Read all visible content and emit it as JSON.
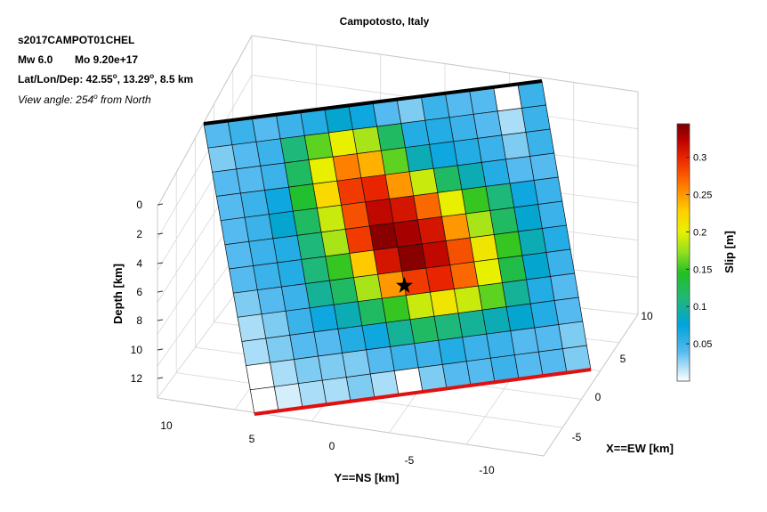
{
  "chart_data": {
    "type": "heatmap",
    "title": "Campotosto, Italy",
    "info": {
      "event_id": "s2017CAMPOT01CHEL",
      "magnitude": "Mw 6.0",
      "moment": "Mo 9.20e+17",
      "location_prefix": "Lat/Lon/Dep: 42.55",
      "lat_suffix": ", 13.29",
      "depth_suffix": ", 8.5 km",
      "degree_symbol": "o",
      "view_prefix": "View angle: 254",
      "view_suffix": " from North"
    },
    "xlabel": "X==EW [km]",
    "ylabel": "Y==NS [km]",
    "zlabel": "Depth [km]",
    "colorbar_label": "Slip [m]",
    "x_ticks": [
      "10",
      "5",
      "0",
      "-5"
    ],
    "y_ticks": [
      "10",
      "5",
      "0",
      "-5",
      "-10"
    ],
    "z_ticks": [
      "0",
      "2",
      "4",
      "6",
      "8",
      "10",
      "12"
    ],
    "colorbar_ticks": [
      "0.05",
      "0.1",
      "0.15",
      "0.2",
      "0.25",
      "0.3"
    ],
    "colorbar_range": [
      0,
      0.345
    ],
    "grid": true,
    "rows": 12,
    "cols": 14,
    "slip": [
      [
        0.04,
        0.05,
        0.04,
        0.05,
        0.06,
        0.08,
        0.07,
        0.04,
        0.03,
        0.05,
        0.04,
        0.04,
        0.0,
        0.05
      ],
      [
        0.03,
        0.04,
        0.05,
        0.11,
        0.16,
        0.2,
        0.18,
        0.12,
        0.06,
        0.06,
        0.05,
        0.04,
        0.02,
        0.05
      ],
      [
        0.04,
        0.04,
        0.05,
        0.12,
        0.2,
        0.26,
        0.24,
        0.16,
        0.09,
        0.07,
        0.06,
        0.05,
        0.03,
        0.05
      ],
      [
        0.04,
        0.05,
        0.07,
        0.14,
        0.22,
        0.29,
        0.3,
        0.25,
        0.19,
        0.12,
        0.09,
        0.06,
        0.04,
        0.04
      ],
      [
        0.04,
        0.05,
        0.08,
        0.12,
        0.19,
        0.28,
        0.32,
        0.31,
        0.27,
        0.2,
        0.15,
        0.11,
        0.07,
        0.05
      ],
      [
        0.04,
        0.05,
        0.06,
        0.11,
        0.18,
        0.29,
        0.34,
        0.33,
        0.31,
        0.25,
        0.18,
        0.12,
        0.08,
        0.05
      ],
      [
        0.04,
        0.05,
        0.06,
        0.11,
        0.15,
        0.23,
        0.31,
        0.34,
        0.32,
        0.28,
        0.21,
        0.15,
        0.09,
        0.06
      ],
      [
        0.03,
        0.04,
        0.05,
        0.1,
        0.12,
        0.18,
        0.25,
        0.29,
        0.3,
        0.27,
        0.2,
        0.13,
        0.08,
        0.05
      ],
      [
        0.02,
        0.03,
        0.05,
        0.07,
        0.09,
        0.12,
        0.15,
        0.19,
        0.21,
        0.19,
        0.16,
        0.1,
        0.06,
        0.04
      ],
      [
        0.02,
        0.03,
        0.04,
        0.04,
        0.06,
        0.07,
        0.1,
        0.12,
        0.11,
        0.1,
        0.09,
        0.08,
        0.06,
        0.04
      ],
      [
        0.0,
        0.02,
        0.03,
        0.03,
        0.03,
        0.04,
        0.05,
        0.05,
        0.06,
        0.05,
        0.05,
        0.04,
        0.04,
        0.03
      ],
      [
        0.0,
        0.01,
        0.02,
        0.02,
        0.03,
        0.02,
        0.0,
        0.03,
        0.04,
        0.04,
        0.05,
        0.04,
        0.04,
        0.03
      ]
    ],
    "hypocenter": {
      "row": 7.6,
      "col": 7.0
    },
    "colors": {
      "top_edge": "#000000",
      "bottom_edge": "#e01010",
      "grid": "#d8d8d8",
      "box": "#c8c8c8",
      "cell_edge": "#111111",
      "hypocenter": "#000000"
    }
  }
}
